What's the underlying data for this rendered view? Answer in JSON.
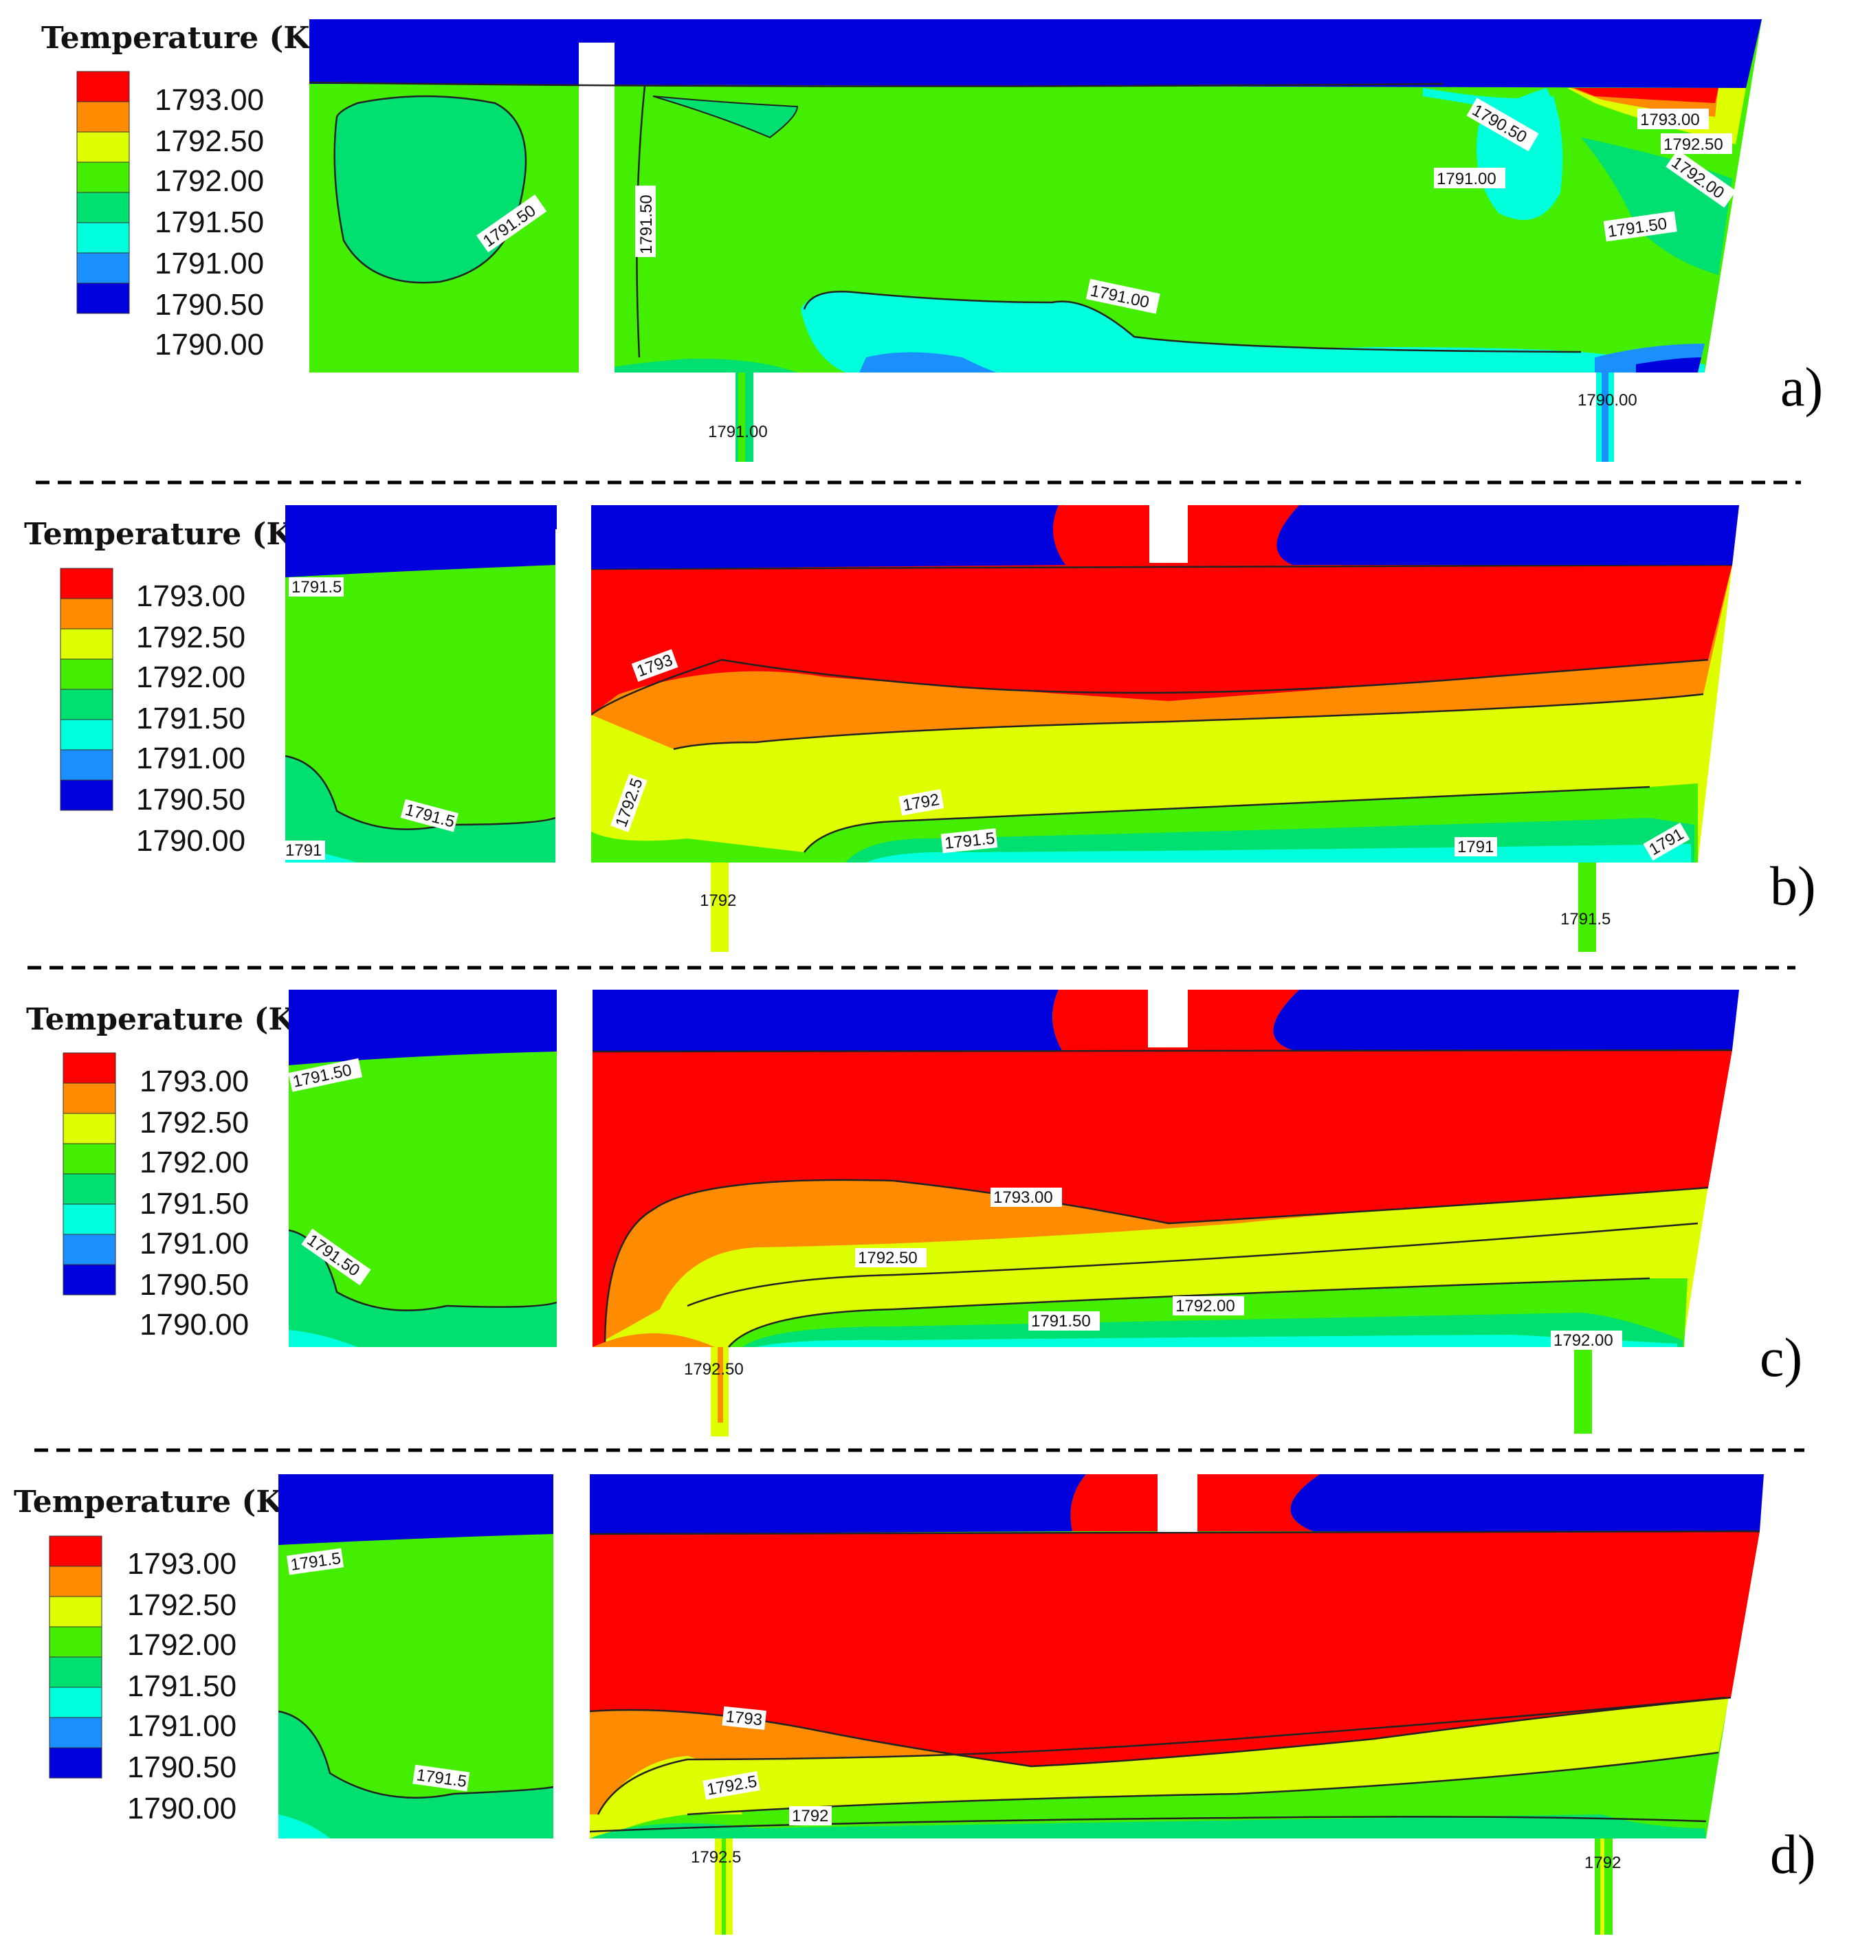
{
  "colors": {
    "1793.00": "#ff0000",
    "1792.50": "#ff8c00",
    "1792.00": "#ddff00",
    "1791.50": "#44ee00",
    "1791.00": "#00e070",
    "1790.50": "#00ffdd",
    "1790.00": "#1a90ff",
    "below": "#0000dd"
  },
  "panels": [
    {
      "id": "a",
      "panel_label": "a)",
      "legend_title": "Temperature (K)",
      "legend_labels": [
        "1793.00",
        "1792.50",
        "1792.00",
        "1791.50",
        "1791.00",
        "1790.50",
        "1790.00"
      ],
      "contour_labels": [
        "1791.50",
        "1791.50",
        "1791.00",
        "1790.50",
        "1791.00",
        "1793.00",
        "1792.50",
        "1792.00",
        "1791.50",
        "1791.00",
        "1790.00"
      ]
    },
    {
      "id": "b",
      "panel_label": "b)",
      "legend_title": "Temperature (K)",
      "legend_labels": [
        "1793.00",
        "1792.50",
        "1792.00",
        "1791.50",
        "1791.00",
        "1790.50",
        "1790.00"
      ],
      "contour_labels": [
        "1791.5",
        "1793",
        "1792.5",
        "1791.5",
        "1792",
        "1791.5",
        "1791",
        "1791",
        "1791",
        "1792",
        "1791.5"
      ]
    },
    {
      "id": "c",
      "panel_label": "c)",
      "legend_title": "Temperature (K)",
      "legend_labels": [
        "1793.00",
        "1792.50",
        "1792.00",
        "1791.50",
        "1791.00",
        "1790.50",
        "1790.00"
      ],
      "contour_labels": [
        "1791.50",
        "1791.50",
        "1793.00",
        "1792.50",
        "1791.50",
        "1792.00",
        "1792.00",
        "1792.50"
      ]
    },
    {
      "id": "d",
      "panel_label": "d)",
      "legend_title": "Temperature (K)",
      "legend_labels": [
        "1793.00",
        "1792.50",
        "1792.00",
        "1791.50",
        "1791.00",
        "1790.50",
        "1790.00"
      ],
      "contour_labels": [
        "1791.5",
        "1791.5",
        "1793",
        "1792.5",
        "1792",
        "1792.5",
        "1792"
      ]
    }
  ]
}
